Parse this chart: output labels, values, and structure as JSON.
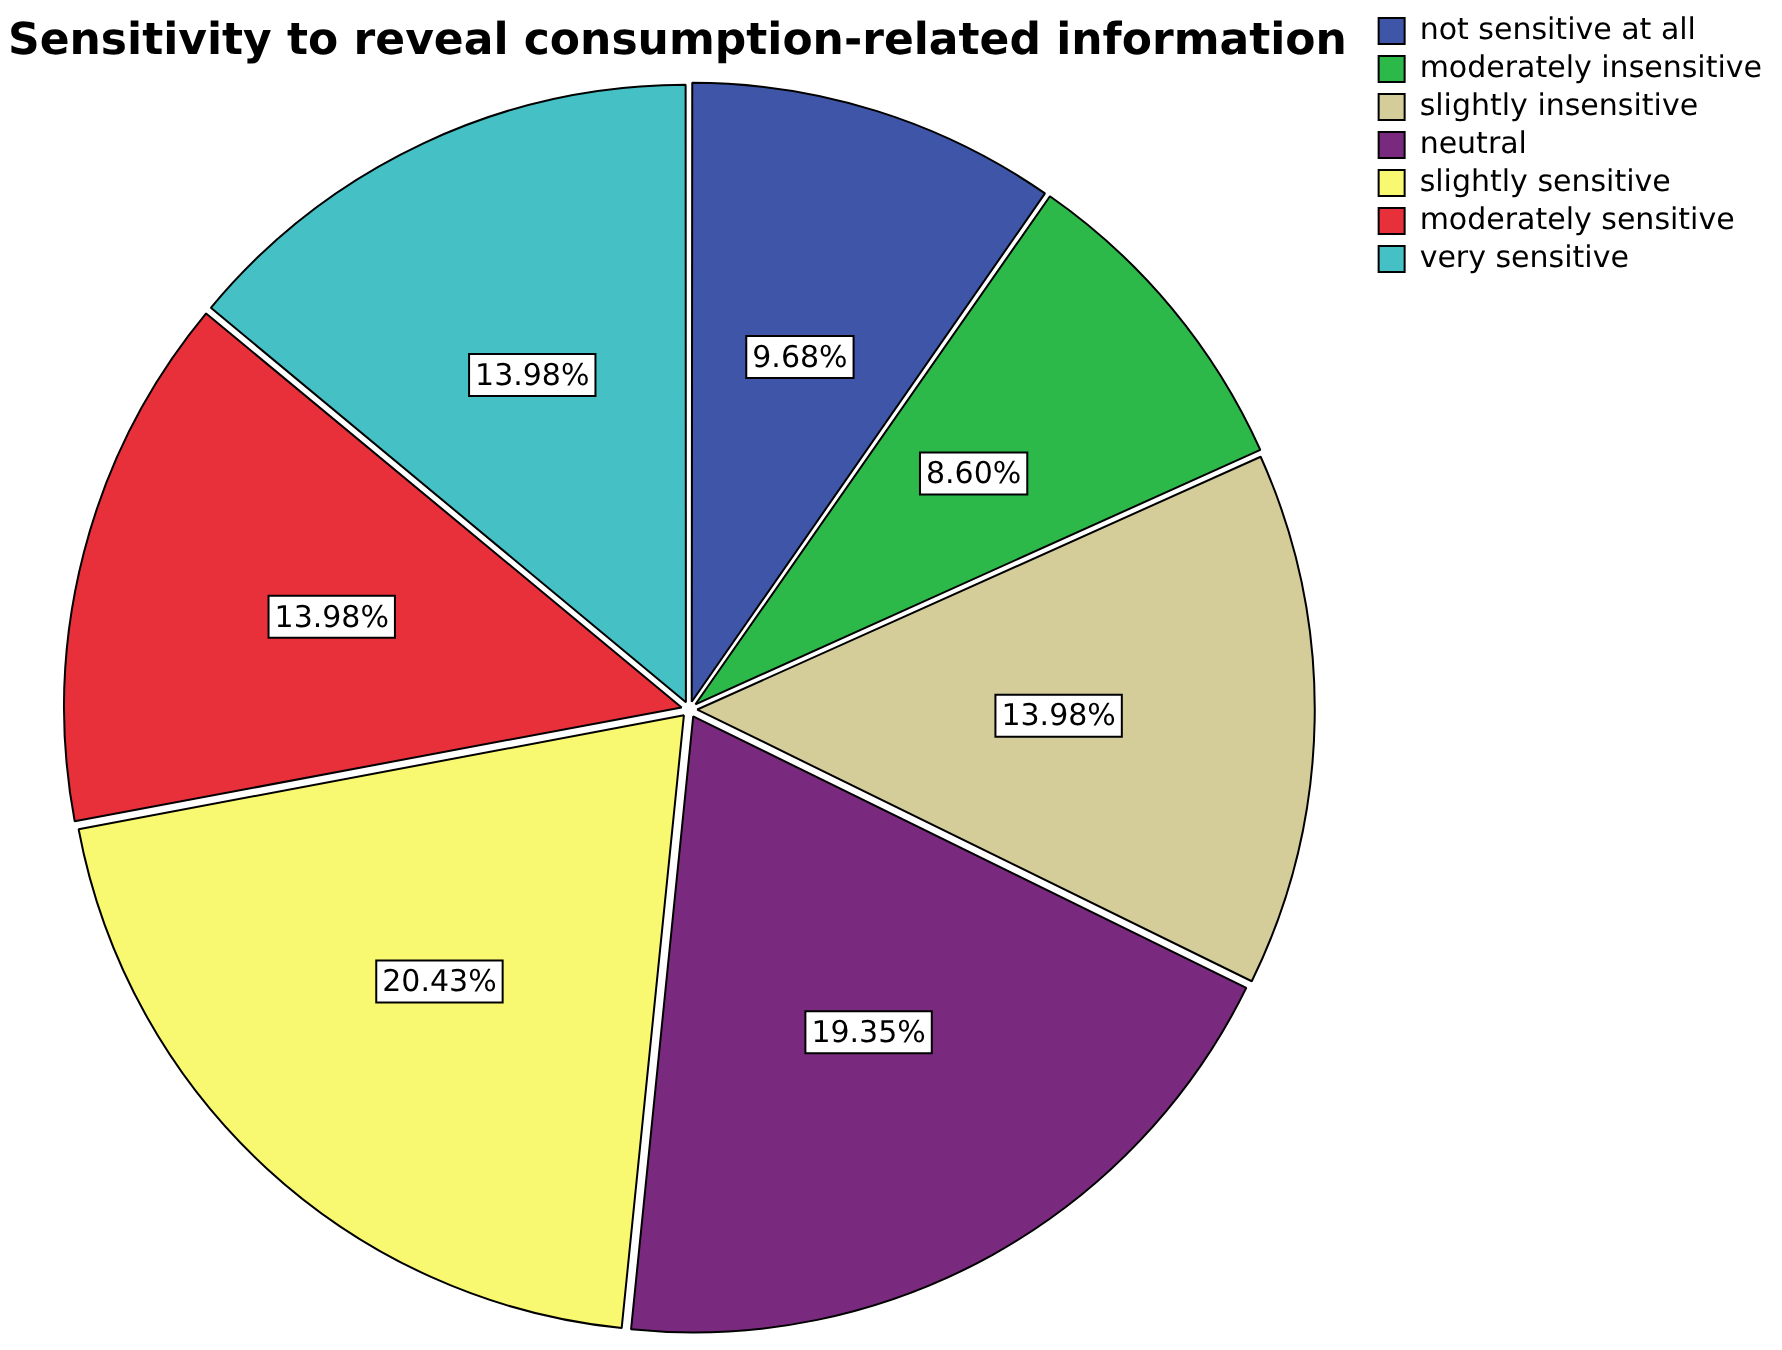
{
  "chart_data": {
    "type": "pie",
    "title": "Sensitivity to reveal consumption-related information",
    "categories": [
      "not sensitive at all",
      "moderately insensitive",
      "slightly insensitive",
      "neutral",
      "slightly sensitive",
      "moderately sensitive",
      "very sensitive"
    ],
    "values": [
      9.68,
      8.6,
      13.98,
      19.35,
      20.43,
      13.98,
      13.98
    ],
    "value_labels": [
      "9.68%",
      "8.60%",
      "13.98%",
      "19.35%",
      "20.43%",
      "13.98%",
      "13.98%"
    ],
    "colors": [
      "#3f56a8",
      "#2db84a",
      "#d4cd9a",
      "#7a2a7e",
      "#f9f871",
      "#e8303a",
      "#45c0c4"
    ],
    "legend": "top right"
  }
}
